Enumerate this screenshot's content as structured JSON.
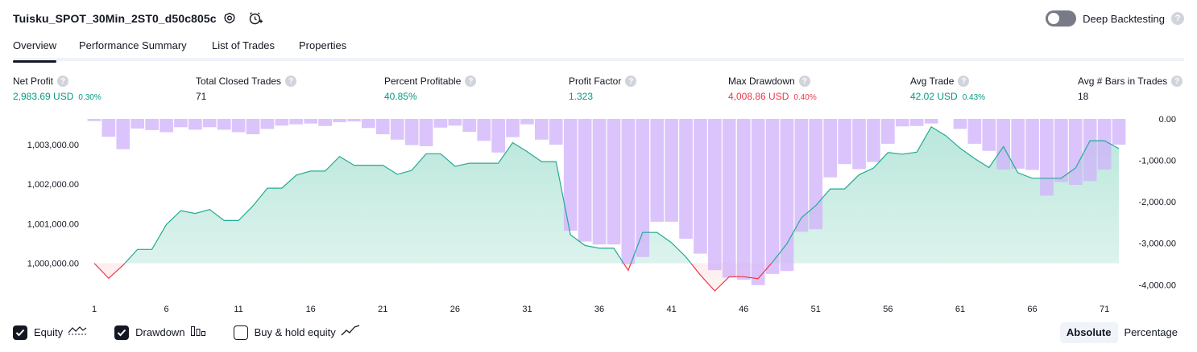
{
  "header": {
    "strategy_name": "Tuisku_SPOT_30Min_2ST0_d50c805c",
    "settings_icon": "gear-icon",
    "add_alert_icon": "alarm-plus-icon",
    "deep_backtesting_label": "Deep Backtesting",
    "deep_backtesting_on": false,
    "help_glyph": "?"
  },
  "tabs": [
    {
      "label": "Overview",
      "active": true
    },
    {
      "label": "Performance Summary",
      "active": false
    },
    {
      "label": "List of Trades",
      "active": false
    },
    {
      "label": "Properties",
      "active": false
    }
  ],
  "metrics": [
    {
      "label": "Net Profit",
      "value": "2,983.69 USD",
      "pct": "0.30%",
      "tone": "pos"
    },
    {
      "label": "Total Closed Trades",
      "value": "71",
      "pct": "",
      "tone": "neutral"
    },
    {
      "label": "Percent Profitable",
      "value": "40.85%",
      "pct": "",
      "tone": "pos"
    },
    {
      "label": "Profit Factor",
      "value": "1.323",
      "pct": "",
      "tone": "pos"
    },
    {
      "label": "Max Drawdown",
      "value": "4,008.86 USD",
      "pct": "0.40%",
      "tone": "neg"
    },
    {
      "label": "Avg Trade",
      "value": "42.02 USD",
      "pct": "0.43%",
      "tone": "pos"
    },
    {
      "label": "Avg # Bars in Trades",
      "value": "18",
      "pct": "",
      "tone": "neutral"
    }
  ],
  "colors": {
    "positive": "#089981",
    "negative": "#f23645",
    "drawdown_bar": "#d1b3fa",
    "equity_line": "#22ab94",
    "equity_fill": "#b2e4d7",
    "below_fill": "#fcc8cc",
    "text": "#131722",
    "axis_text": "#131722"
  },
  "legend": [
    {
      "label": "Equity",
      "checked": true,
      "icon": "equity-line-icon"
    },
    {
      "label": "Drawdown",
      "checked": true,
      "icon": "drawdown-bars-icon"
    },
    {
      "label": "Buy & hold equity",
      "checked": false,
      "icon": "buy-hold-line-icon"
    }
  ],
  "view_modes": [
    {
      "label": "Absolute",
      "active": true
    },
    {
      "label": "Percentage",
      "active": false
    }
  ],
  "chart_data": {
    "type": "line",
    "x_ticks": [
      "1",
      "6",
      "11",
      "16",
      "21",
      "26",
      "31",
      "36",
      "41",
      "46",
      "51",
      "56",
      "61",
      "66",
      "71"
    ],
    "left_axis_ticks": [
      "1,003,000.00",
      "1,002,000.00",
      "1,001,000.00",
      "1,000,000.00"
    ],
    "right_axis_ticks": [
      "0.00",
      "-1,000.00",
      "-2,000.00",
      "-3,000.00",
      "-4,000.00"
    ],
    "left_ylim": [
      999300,
      1003650
    ],
    "right_ylim": [
      -4150,
      0
    ],
    "baseline": 1000000,
    "series": [
      {
        "name": "Equity",
        "axis": "left",
        "x": [
          1,
          2,
          3,
          4,
          5,
          6,
          7,
          8,
          9,
          10,
          11,
          12,
          13,
          14,
          15,
          16,
          17,
          18,
          19,
          20,
          21,
          22,
          23,
          24,
          25,
          26,
          27,
          28,
          29,
          30,
          31,
          32,
          33,
          34,
          35,
          36,
          37,
          38,
          39,
          40,
          41,
          42,
          43,
          44,
          45,
          46,
          47,
          48,
          49,
          50,
          51,
          52,
          53,
          54,
          55,
          56,
          57,
          58,
          59,
          60,
          61,
          62,
          63,
          64,
          65,
          66,
          67,
          68,
          69,
          70,
          71,
          72
        ],
        "values": [
          1000000,
          999620,
          999950,
          1000350,
          1000350,
          1000980,
          1001330,
          1001260,
          1001360,
          1001080,
          1001080,
          1001450,
          1001900,
          1001900,
          1002230,
          1002330,
          1002330,
          1002700,
          1002480,
          1002480,
          1002480,
          1002250,
          1002350,
          1002770,
          1002770,
          1002450,
          1002530,
          1002530,
          1002530,
          1003050,
          1002820,
          1002570,
          1002570,
          1000720,
          1000450,
          1000380,
          1000380,
          999820,
          1000780,
          1000780,
          1000520,
          1000160,
          999700,
          999300,
          999660,
          999660,
          999610,
          1000030,
          1000500,
          1001150,
          1001460,
          1001880,
          1001880,
          1002240,
          1002410,
          1002800,
          1002760,
          1002810,
          1003450,
          1003230,
          1002910,
          1002650,
          1002420,
          1002950,
          1002290,
          1002150,
          1002150,
          1002150,
          1002410,
          1003100,
          1003100,
          1002900
        ]
      },
      {
        "name": "Drawdown",
        "axis": "right",
        "x": [
          1,
          2,
          3,
          4,
          5,
          6,
          7,
          8,
          9,
          10,
          11,
          12,
          13,
          14,
          15,
          16,
          17,
          18,
          19,
          20,
          21,
          22,
          23,
          24,
          25,
          26,
          27,
          28,
          29,
          30,
          31,
          32,
          33,
          34,
          35,
          36,
          37,
          38,
          39,
          40,
          41,
          42,
          43,
          44,
          45,
          46,
          47,
          48,
          49,
          50,
          51,
          52,
          53,
          54,
          55,
          56,
          57,
          58,
          59,
          60,
          61,
          62,
          63,
          64,
          65,
          66,
          67,
          68,
          69,
          70,
          71,
          72
        ],
        "values": [
          -50,
          -430,
          -730,
          -230,
          -270,
          -320,
          -200,
          -260,
          -200,
          -260,
          -320,
          -370,
          -240,
          -160,
          -130,
          -110,
          -170,
          -80,
          -60,
          -220,
          -370,
          -500,
          -630,
          -660,
          -210,
          -160,
          -310,
          -530,
          -810,
          -440,
          -130,
          -500,
          -620,
          -2700,
          -2960,
          -3030,
          -3030,
          -3500,
          -3330,
          -2480,
          -2480,
          -2890,
          -3250,
          -3650,
          -3830,
          -3880,
          -4010,
          -3740,
          -3670,
          -2720,
          -2660,
          -1410,
          -1090,
          -1210,
          -1040,
          -600,
          -180,
          -170,
          -110,
          0,
          -240,
          -600,
          -770,
          -1220,
          -1200,
          -1230,
          -1850,
          -1520,
          -1590,
          -1500,
          -1220,
          -620
        ]
      }
    ],
    "grid": false,
    "legend_position": "bottom-left"
  }
}
